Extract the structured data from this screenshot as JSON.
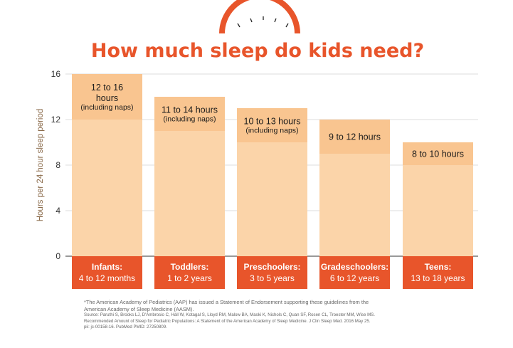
{
  "chart_data": {
    "type": "bar",
    "title": "How much sleep do kids need?",
    "ylabel": "Hours per 24 hour sleep period",
    "xlabel": "",
    "ylim": [
      0,
      16
    ],
    "yticks": [
      "0",
      "4",
      "8",
      "12",
      "16"
    ],
    "grid": true,
    "categories": [
      {
        "name": "Infants:",
        "age": "4 to 12 months",
        "min": 12,
        "max": 16,
        "range_lines": [
          "12 to 16",
          "hours",
          "(including naps)"
        ]
      },
      {
        "name": "Toddlers:",
        "age": "1 to 2 years",
        "min": 11,
        "max": 14,
        "range_lines": [
          "11 to 14 hours",
          "(including naps)"
        ]
      },
      {
        "name": "Preschoolers:",
        "age": "3 to 5 years",
        "min": 10,
        "max": 13,
        "range_lines": [
          "10 to 13 hours",
          "(including naps)"
        ]
      },
      {
        "name": "Gradeschoolers:",
        "age": "6 to 12 years",
        "min": 9,
        "max": 12,
        "range_lines": [
          "9 to 12 hours"
        ]
      },
      {
        "name": "Teens:",
        "age": "13 to 18 years",
        "min": 8,
        "max": 10,
        "range_lines": [
          "8 to 10 hours"
        ]
      }
    ]
  },
  "footnote": {
    "main_lines": [
      "*The American Academy of Pediatrics (AAP) has issued a Statement of Endorsement supporting these guidelines from the",
      "American Academy of Sleep Medicine (AASM)."
    ],
    "source_lines": [
      "Source: Paruthi S, Brooks LJ, D'Ambrosio C, Hall W, Kotagal S, Lloyd RM, Malow BA, Maski K, Nichols C, Quan SF, Rosen CL, Troester MM, Wise MS.",
      "Recommended Amount of Sleep for Pediatric Populations: A Statement of the American Academy of Sleep Medicine. J Clin Sleep Med. 2016 May 25.",
      "pii: jc-00158-16. PubMed PMID: 27250809."
    ]
  },
  "colors": {
    "title": "#e8552b",
    "accent": "#e8552b",
    "bar_light": "#fbd4a9",
    "bar_range": "#f9c590",
    "label_bg": "#e8552b",
    "axis": "#333333",
    "ylabel": "#8a6a4a",
    "grid": "#dddddd"
  }
}
